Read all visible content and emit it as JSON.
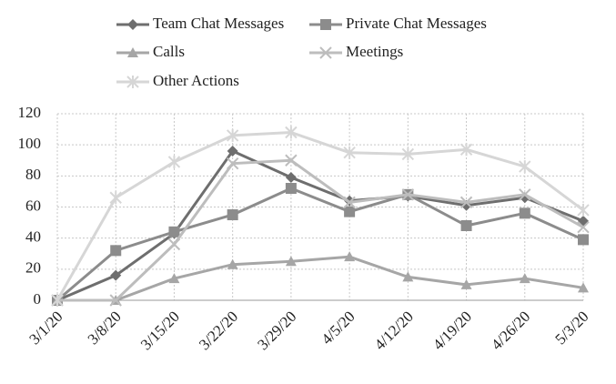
{
  "chart_data": {
    "type": "line",
    "categories": [
      "3/1/20",
      "3/8/20",
      "3/15/20",
      "3/22/20",
      "3/29/20",
      "4/5/20",
      "4/12/20",
      "4/19/20",
      "4/26/20",
      "5/3/20"
    ],
    "series": [
      {
        "name": "Team Chat Messages",
        "color": "#6e6e6e",
        "marker": "diamond",
        "values": [
          0,
          16,
          43,
          96,
          79,
          64,
          67,
          61,
          66,
          51
        ]
      },
      {
        "name": "Private Chat Messages",
        "color": "#8c8c8c",
        "marker": "square",
        "values": [
          0,
          32,
          44,
          55,
          72,
          57,
          68,
          48,
          56,
          39
        ]
      },
      {
        "name": "Calls",
        "color": "#a6a6a6",
        "marker": "triangle",
        "values": [
          0,
          0,
          14,
          23,
          25,
          28,
          15,
          10,
          14,
          8
        ]
      },
      {
        "name": "Meetings",
        "color": "#bdbdbd",
        "marker": "x",
        "values": [
          0,
          0,
          36,
          88,
          90,
          63,
          68,
          63,
          68,
          47
        ]
      },
      {
        "name": "Other Actions",
        "color": "#d6d6d6",
        "marker": "asterisk",
        "values": [
          0,
          66,
          89,
          106,
          108,
          95,
          94,
          97,
          86,
          58
        ]
      }
    ],
    "ylim": [
      0,
      120
    ],
    "yticks": [
      0,
      20,
      40,
      60,
      80,
      100,
      120
    ],
    "grid": true,
    "legend": "top"
  }
}
